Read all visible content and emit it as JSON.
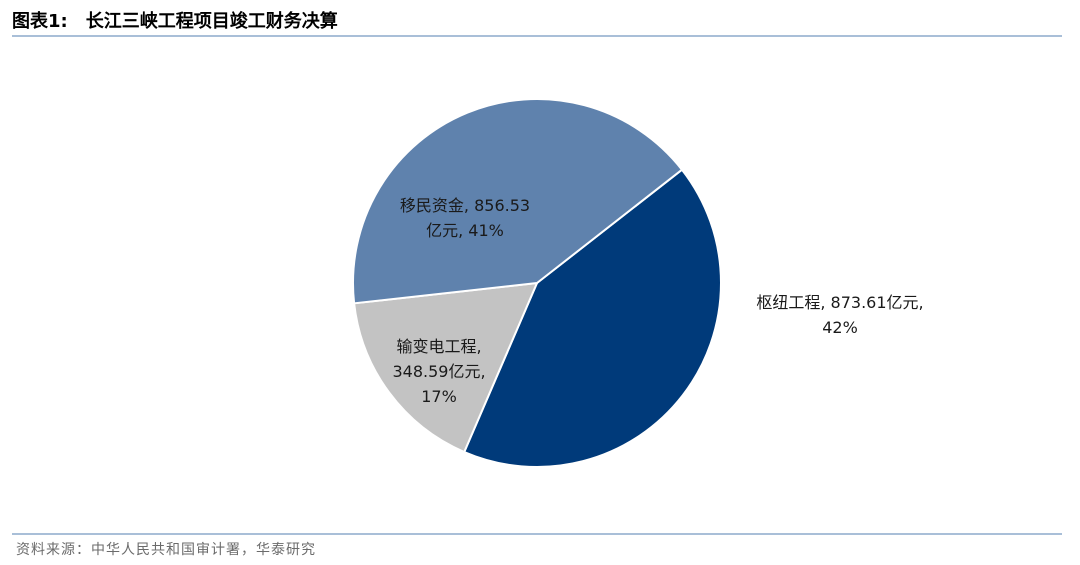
{
  "figure": {
    "number": "图表1:",
    "title": "长江三峡工程项目竣工财务决算"
  },
  "source": "资料来源：中华人民共和国审计署，华泰研究",
  "colors": {
    "hub": "#003a7a",
    "migration": "#5f82ad",
    "transmission": "#c3c3c3",
    "rule": "#a9bfd8"
  },
  "chart_data": {
    "type": "pie",
    "title": "长江三峡工程项目竣工财务决算",
    "unit": "亿元",
    "slices": [
      {
        "name": "枢纽工程",
        "value": 873.61,
        "percent": 42,
        "label_lines": [
          "枢纽工程, 873.61亿元,",
          "42%"
        ]
      },
      {
        "name": "输变电工程",
        "value": 348.59,
        "percent": 17,
        "label_lines": [
          "输变电工程,",
          "348.59亿元,",
          "17%"
        ]
      },
      {
        "name": "移民资金",
        "value": 856.53,
        "percent": 41,
        "label_lines": [
          "移民资金, 856.53",
          "亿元, 41%"
        ]
      }
    ]
  }
}
